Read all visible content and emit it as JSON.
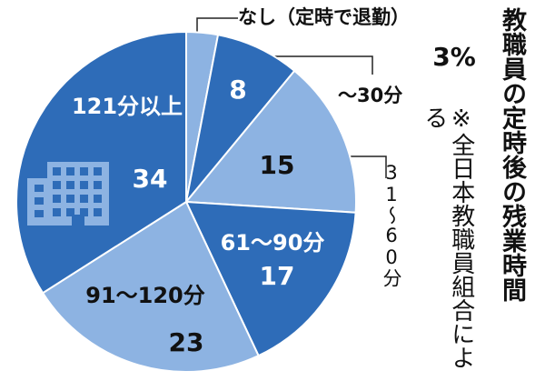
{
  "chart_data": {
    "type": "pie",
    "title": "教職員の定時後の残業時間",
    "note": "※全日本教職員組合による",
    "categories": [
      "なし（定時で退勤）",
      "〜30分",
      "31〜60分",
      "61〜90分",
      "91〜120分",
      "121分以上"
    ],
    "values": [
      3,
      8,
      15,
      17,
      23,
      34
    ],
    "value_labels": [
      "3%",
      "8",
      "15",
      "17",
      "23",
      "34"
    ],
    "colors": [
      "#8db3e2",
      "#2e6cb8",
      "#8db3e2",
      "#2e6cb8",
      "#8db3e2",
      "#2e6cb8"
    ]
  }
}
